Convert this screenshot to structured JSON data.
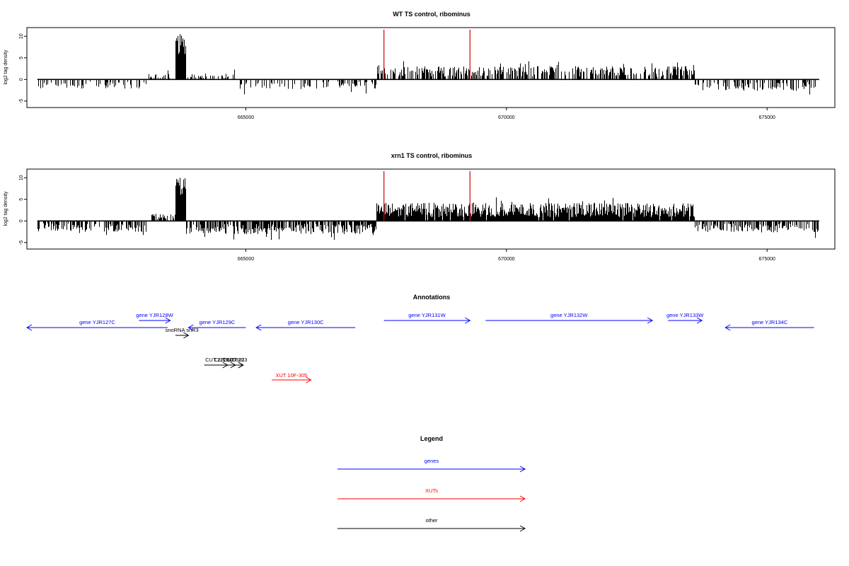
{
  "chart_data": [
    {
      "type": "bar",
      "title": "WT TS control, ribominus",
      "ylabel": "log2 tag density",
      "xlim": [
        660800,
        676300
      ],
      "ylim": [
        -6.5,
        12
      ],
      "x_ticks": [
        665000,
        670000,
        675000
      ],
      "y_ticks": [
        -5,
        0,
        5,
        10
      ],
      "markers": [
        {
          "x": 667650,
          "color": "#d40000"
        },
        {
          "x": 669300,
          "color": "#d40000"
        }
      ],
      "regions": [
        {
          "from": 661000,
          "to": 663100,
          "level": -1.6,
          "density": 0.35
        },
        {
          "from": 663100,
          "to": 663650,
          "level": 1.0,
          "density": 0.5
        },
        {
          "from": 663650,
          "to": 663850,
          "level": 10.5,
          "density": 1.0
        },
        {
          "from": 663850,
          "to": 664800,
          "level": 1.0,
          "density": 0.4
        },
        {
          "from": 664800,
          "to": 667500,
          "level": -1.6,
          "density": 0.3
        },
        {
          "from": 667500,
          "to": 673600,
          "level": 2.2,
          "density": 0.6
        },
        {
          "from": 673600,
          "to": 676000,
          "level": -1.9,
          "density": 0.45
        }
      ]
    },
    {
      "type": "bar",
      "title": "xrn1 TS control, ribominus",
      "ylabel": "log2 tag density",
      "xlim": [
        660800,
        676300
      ],
      "ylim": [
        -6.5,
        12
      ],
      "x_ticks": [
        665000,
        670000,
        675000
      ],
      "y_ticks": [
        -5,
        0,
        5,
        10
      ],
      "markers": [
        {
          "x": 667650,
          "color": "#d40000"
        },
        {
          "x": 669300,
          "color": "#d40000"
        }
      ],
      "regions": [
        {
          "from": 661000,
          "to": 663100,
          "level": -1.8,
          "density": 0.6
        },
        {
          "from": 663100,
          "to": 663650,
          "level": 1.2,
          "density": 0.6
        },
        {
          "from": 663650,
          "to": 663850,
          "level": 10.5,
          "density": 1.0
        },
        {
          "from": 663850,
          "to": 667500,
          "level": -2.2,
          "density": 0.7
        },
        {
          "from": 667500,
          "to": 673600,
          "level": 3.0,
          "density": 0.95
        },
        {
          "from": 673600,
          "to": 676000,
          "level": -1.9,
          "density": 0.6
        }
      ]
    }
  ],
  "annotations": {
    "title": "Annotations",
    "features": [
      {
        "label": "gene YJR127C",
        "color": "#0000ff",
        "from": 660800,
        "to": 663500,
        "strand": "-",
        "row": 1
      },
      {
        "label": "gene YJR128W",
        "color": "#0000ff",
        "from": 662950,
        "to": 663550,
        "strand": "+",
        "row": 0
      },
      {
        "label": "gene YJR129C",
        "color": "#0000ff",
        "from": 663900,
        "to": 665000,
        "strand": "-",
        "row": 1
      },
      {
        "label": "snoRNA snR3",
        "color": "#000000",
        "from": 663650,
        "to": 663900,
        "strand": "+",
        "row": 2
      },
      {
        "label": "gene YJR130C",
        "color": "#0000ff",
        "from": 665200,
        "to": 667100,
        "strand": "-",
        "row": 1
      },
      {
        "label": "gene YJR131W",
        "color": "#0000ff",
        "from": 667650,
        "to": 669300,
        "strand": "+",
        "row": 0
      },
      {
        "label": "gene YJR132W",
        "color": "#0000ff",
        "from": 669600,
        "to": 672800,
        "strand": "+",
        "row": 0
      },
      {
        "label": "gene YJR133W",
        "color": "#0000ff",
        "from": 673100,
        "to": 673750,
        "strand": "+",
        "row": 0
      },
      {
        "label": "gene YJR134C",
        "color": "#0000ff",
        "from": 674200,
        "to": 675900,
        "strand": "-",
        "row": 1
      },
      {
        "label": "CUT 222",
        "color": "#000000",
        "from": 664200,
        "to": 664650,
        "strand": "+",
        "row": 3
      },
      {
        "label": "CUT 600",
        "color": "#000000",
        "from": 664400,
        "to": 664800,
        "strand": "+",
        "row": 3
      },
      {
        "label": "CUT 601",
        "color": "#000000",
        "from": 664600,
        "to": 664950,
        "strand": "+",
        "row": 3
      },
      {
        "label": "CUT 223",
        "color": "#000000",
        "from": 664700,
        "to": 664950,
        "strand": "+",
        "row": 3
      },
      {
        "label": "XUT 10F-305",
        "color": "#ff0000",
        "from": 665500,
        "to": 666250,
        "strand": "+",
        "row": 4
      }
    ]
  },
  "legend": {
    "title": "Legend",
    "items": [
      {
        "label": "genes",
        "color": "#0000ff"
      },
      {
        "label": "XUTs",
        "color": "#ff0000"
      },
      {
        "label": "other",
        "color": "#000000"
      }
    ]
  }
}
